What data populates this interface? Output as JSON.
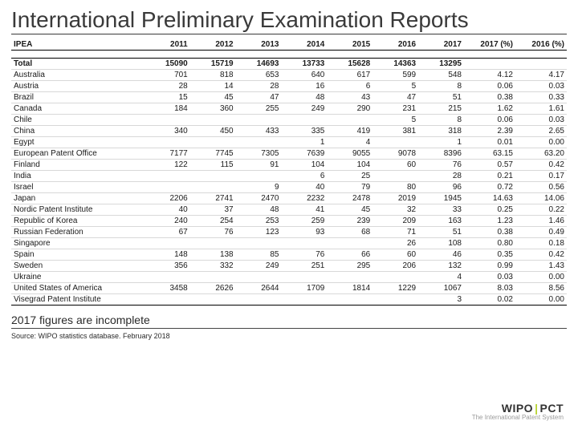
{
  "title": "International Preliminary Examination Reports",
  "footnote": "2017 figures are incomplete",
  "source": "Source: WIPO statistics database.  February 2018",
  "logo": {
    "brand_left": "WIPO",
    "brand_right": "PCT",
    "tagline": "The International Patent System"
  },
  "columns": [
    "IPEA",
    "2011",
    "2012",
    "2013",
    "2014",
    "2015",
    "2016",
    "2017",
    "2017 (%)",
    "2016 (%)"
  ],
  "col_widths": [
    "140px",
    "48px",
    "48px",
    "48px",
    "48px",
    "48px",
    "48px",
    "48px",
    "54px",
    "54px"
  ],
  "total": {
    "label": "Total",
    "cells": [
      "15090",
      "15719",
      "14693",
      "13733",
      "15628",
      "14363",
      "13295",
      "",
      ""
    ]
  },
  "rows": [
    {
      "label": "Australia",
      "cells": [
        "701",
        "818",
        "653",
        "640",
        "617",
        "599",
        "548",
        "4.12",
        "4.17"
      ]
    },
    {
      "label": "Austria",
      "cells": [
        "28",
        "14",
        "28",
        "16",
        "6",
        "5",
        "8",
        "0.06",
        "0.03"
      ]
    },
    {
      "label": "Brazil",
      "cells": [
        "15",
        "45",
        "47",
        "48",
        "43",
        "47",
        "51",
        "0.38",
        "0.33"
      ]
    },
    {
      "label": "Canada",
      "cells": [
        "184",
        "360",
        "255",
        "249",
        "290",
        "231",
        "215",
        "1.62",
        "1.61"
      ]
    },
    {
      "label": "Chile",
      "cells": [
        "",
        "",
        "",
        "",
        "",
        "5",
        "8",
        "0.06",
        "0.03"
      ]
    },
    {
      "label": "China",
      "cells": [
        "340",
        "450",
        "433",
        "335",
        "419",
        "381",
        "318",
        "2.39",
        "2.65"
      ]
    },
    {
      "label": "Egypt",
      "cells": [
        "",
        "",
        "",
        "1",
        "4",
        "",
        "1",
        "0.01",
        "0.00"
      ]
    },
    {
      "label": "European Patent Office",
      "cells": [
        "7177",
        "7745",
        "7305",
        "7639",
        "9055",
        "9078",
        "8396",
        "63.15",
        "63.20"
      ]
    },
    {
      "label": "Finland",
      "cells": [
        "122",
        "115",
        "91",
        "104",
        "104",
        "60",
        "76",
        "0.57",
        "0.42"
      ]
    },
    {
      "label": "India",
      "cells": [
        "",
        "",
        "",
        "6",
        "25",
        "",
        "28",
        "0.21",
        "0.17"
      ]
    },
    {
      "label": "Israel",
      "cells": [
        "",
        "",
        "9",
        "40",
        "79",
        "80",
        "96",
        "0.72",
        "0.56"
      ]
    },
    {
      "label": "Japan",
      "cells": [
        "2206",
        "2741",
        "2470",
        "2232",
        "2478",
        "2019",
        "1945",
        "14.63",
        "14.06"
      ]
    },
    {
      "label": "Nordic Patent Institute",
      "cells": [
        "40",
        "37",
        "48",
        "41",
        "45",
        "32",
        "33",
        "0.25",
        "0.22"
      ]
    },
    {
      "label": "Republic of Korea",
      "cells": [
        "240",
        "254",
        "253",
        "259",
        "239",
        "209",
        "163",
        "1.23",
        "1.46"
      ]
    },
    {
      "label": "Russian Federation",
      "cells": [
        "67",
        "76",
        "123",
        "93",
        "68",
        "71",
        "51",
        "0.38",
        "0.49"
      ]
    },
    {
      "label": "Singapore",
      "cells": [
        "",
        "",
        "",
        "",
        "",
        "26",
        "108",
        "0.80",
        "0.18"
      ]
    },
    {
      "label": "Spain",
      "cells": [
        "148",
        "138",
        "85",
        "76",
        "66",
        "60",
        "46",
        "0.35",
        "0.42"
      ]
    },
    {
      "label": "Sweden",
      "cells": [
        "356",
        "332",
        "249",
        "251",
        "295",
        "206",
        "132",
        "0.99",
        "1.43"
      ]
    },
    {
      "label": "Ukraine",
      "cells": [
        "",
        "",
        "",
        "",
        "",
        "",
        "4",
        "0.03",
        "0.00"
      ]
    },
    {
      "label": "United States of America",
      "cells": [
        "3458",
        "2626",
        "2644",
        "1709",
        "1814",
        "1229",
        "1067",
        "8.03",
        "8.56"
      ]
    },
    {
      "label": "Visegrad Patent Institute",
      "cells": [
        "",
        "",
        "",
        "",
        "",
        "",
        "3",
        "0.02",
        "0.00"
      ]
    }
  ]
}
